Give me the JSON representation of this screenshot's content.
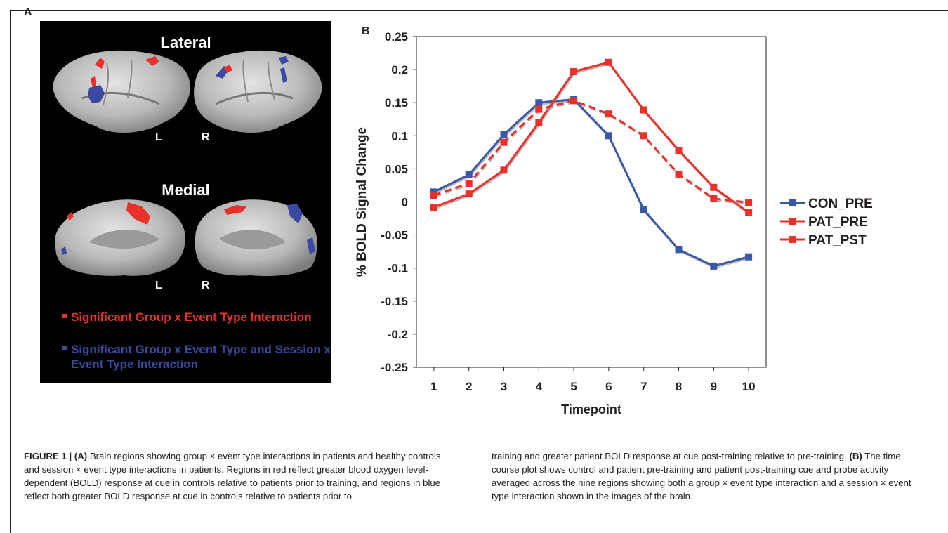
{
  "panel_a": {
    "letter": "A",
    "lateral_title": "Lateral",
    "medial_title": "Medial",
    "hemi_left": "L",
    "hemi_right": "R",
    "legend": [
      {
        "color": "#e8312a",
        "text": "Significant Group x Event Type Interaction"
      },
      {
        "color": "#3b4aa0",
        "text": "Significant Group x Event Type and Session x Event Type Interaction"
      }
    ]
  },
  "panel_b": {
    "letter": "B"
  },
  "chart_data": {
    "type": "line",
    "xlabel": "Timepoint",
    "ylabel": "% BOLD Signal Change",
    "x": [
      1,
      2,
      3,
      4,
      5,
      6,
      7,
      8,
      9,
      10
    ],
    "ylim": [
      -0.25,
      0.25
    ],
    "yticks": [
      0.25,
      0.2,
      0.15,
      0.1,
      0.05,
      0,
      -0.05,
      -0.1,
      -0.15,
      -0.2,
      -0.25
    ],
    "ytick_labels": [
      "0.25",
      "0.2",
      "0.15",
      "0.1",
      "0.05",
      "0",
      "-0.05",
      "-0.1",
      "-0.15",
      "-0.2",
      "-0.25"
    ],
    "grid": false,
    "legend_position": "right",
    "series": [
      {
        "name": "CON_PRE",
        "color": "#3b58a8",
        "style": "solid",
        "values": [
          0.015,
          0.041,
          0.102,
          0.15,
          0.155,
          0.1,
          -0.012,
          -0.072,
          -0.097,
          -0.083
        ]
      },
      {
        "name": "PAT_PRE",
        "color": "#e8312a",
        "style": "solid",
        "values": [
          -0.008,
          0.012,
          0.048,
          0.12,
          0.197,
          0.211,
          0.139,
          0.078,
          0.022,
          -0.016
        ]
      },
      {
        "name": "PAT_PST",
        "color": "#e8312a",
        "style": "dashed",
        "values": [
          0.01,
          0.028,
          0.09,
          0.14,
          0.153,
          0.133,
          0.1,
          0.042,
          0.005,
          -0.001
        ]
      }
    ]
  },
  "caption": {
    "label": "FIGURE 1 | (A)",
    "left_text": " Brain regions showing group × event type interactions in patients and healthy controls and session × event type interactions in patients. Regions in red reflect greater blood oxygen level-dependent (BOLD) response at cue in controls relative to patients prior to training, and regions in blue reflect both greater BOLD response at cue in controls relative to patients prior to",
    "right_text_1": "training and greater patient BOLD response at cue post-training relative to pre-training. ",
    "right_label_b": "(B)",
    "right_text_2": " The time course plot shows control and patient pre-training and patient post-training cue and probe activity averaged across the nine regions showing both a group × event type interaction and a session × event type interaction shown in the images of the brain."
  }
}
